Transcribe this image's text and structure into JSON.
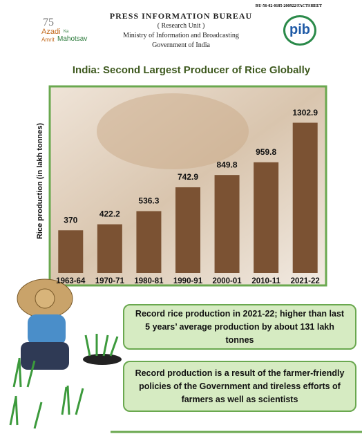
{
  "header": {
    "ref": "RU-56-02-0185-200922/FACTSHEET",
    "org": "PRESS INFORMATION BUREAU",
    "unit": "( Research Unit )",
    "ministry": "Ministry of Information and Broadcasting",
    "gov": "Government of India",
    "logo_left": {
      "number": "75",
      "line1": "Azadi",
      "ka": "Ka",
      "line2a": "Amrit",
      "line2b": "Mahotsav"
    },
    "logo_right": "pib"
  },
  "chart_data": {
    "type": "bar",
    "title": "India: Second Largest Producer of Rice Globally",
    "y_label": "Rice production (in lakh tonnes)",
    "categories": [
      "1963-64",
      "1970-71",
      "1980-81",
      "1990-91",
      "2000-01",
      "2010-11",
      "2021-22"
    ],
    "values": [
      370,
      422.2,
      536.3,
      742.9,
      849.8,
      959.8,
      1302.9
    ],
    "color": "#7b5233",
    "ylim": [
      0,
      1600
    ]
  },
  "callouts": [
    "Record rice production in 2021-22; higher than last 5 years’ average production by about 131 lakh tonnes",
    "Record production is a result of the farmer-friendly policies of the Government and tireless efforts of farmers as well as scientists"
  ]
}
